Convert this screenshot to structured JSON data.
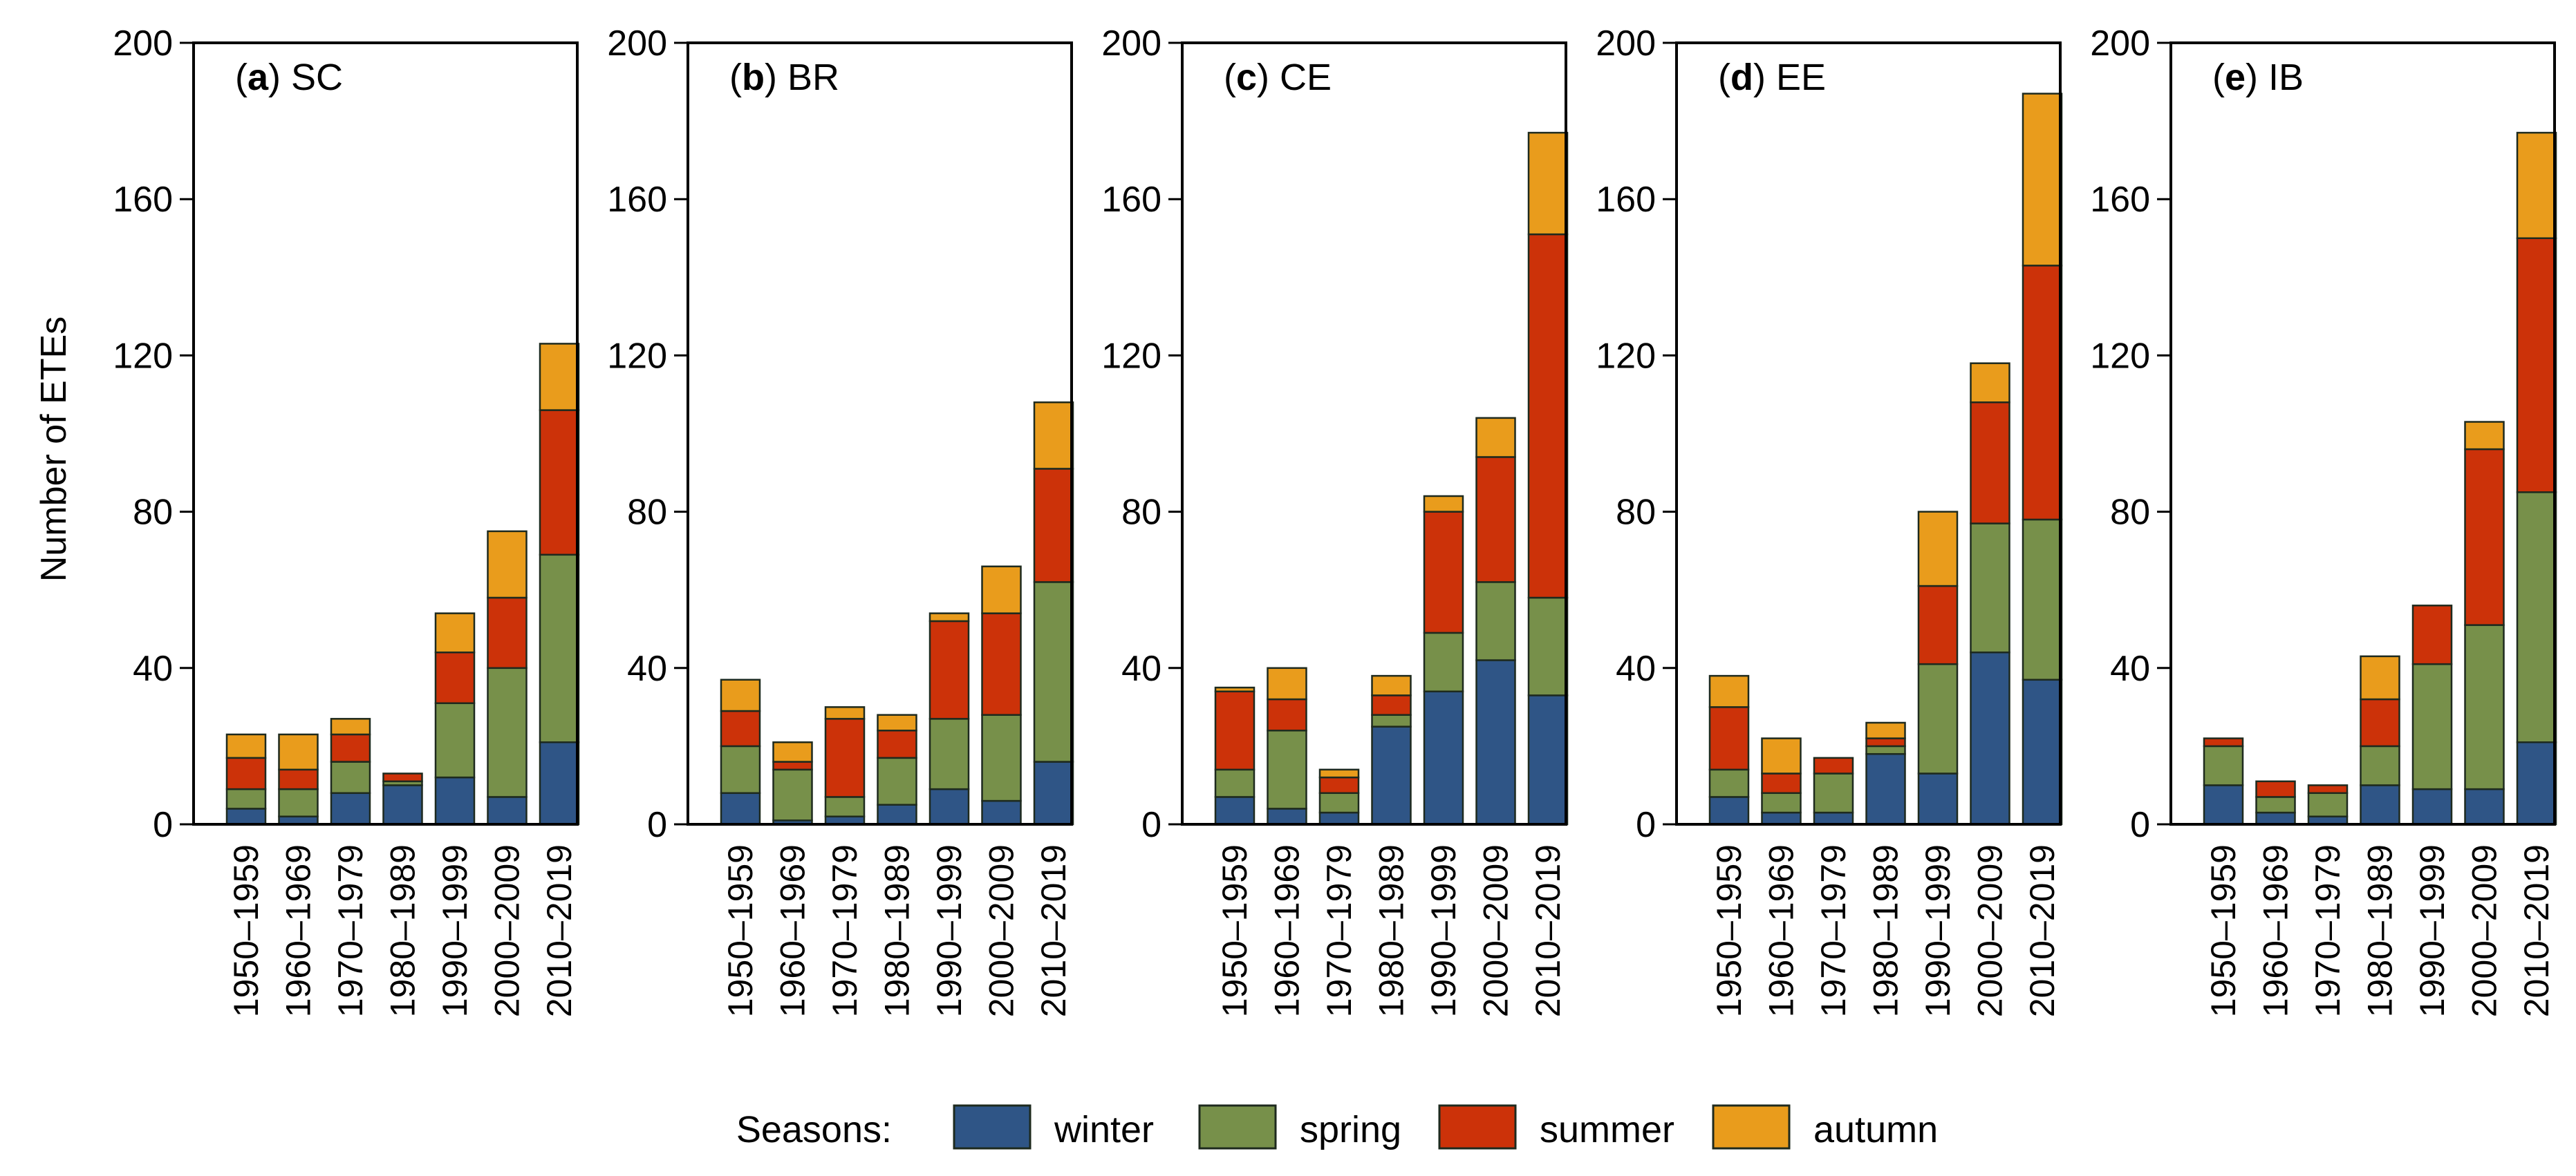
{
  "chart_data": {
    "type": "bar",
    "stacked": true,
    "ylabel": "Number of ETEs",
    "ylim": [
      0,
      200
    ],
    "yticks": [
      0,
      40,
      80,
      120,
      160,
      200
    ],
    "categories": [
      "1950–1959",
      "1960–1969",
      "1970–1979",
      "1980–1989",
      "1990–1999",
      "2000–2009",
      "2010–2019"
    ],
    "series_names": [
      "winter",
      "spring",
      "summer",
      "autumn"
    ],
    "colors": {
      "winter": "#2f5586",
      "spring": "#77904a",
      "summer": "#cc3209",
      "autumn": "#e99c1c"
    },
    "legend": {
      "title": "Seasons:",
      "position": "bottom-center"
    },
    "panels": [
      {
        "letter": "a",
        "region": "SC",
        "series": [
          {
            "name": "winter",
            "values": [
              4,
              2,
              8,
              10,
              12,
              7,
              21
            ]
          },
          {
            "name": "spring",
            "values": [
              5,
              7,
              8,
              1,
              19,
              33,
              48
            ]
          },
          {
            "name": "summer",
            "values": [
              8,
              5,
              7,
              2,
              13,
              18,
              37
            ]
          },
          {
            "name": "autumn",
            "values": [
              6,
              9,
              4,
              0,
              10,
              17,
              17
            ]
          }
        ]
      },
      {
        "letter": "b",
        "region": "BR",
        "series": [
          {
            "name": "winter",
            "values": [
              8,
              1,
              2,
              5,
              9,
              6,
              16
            ]
          },
          {
            "name": "spring",
            "values": [
              12,
              13,
              5,
              12,
              18,
              22,
              46
            ]
          },
          {
            "name": "summer",
            "values": [
              9,
              2,
              20,
              7,
              25,
              26,
              29
            ]
          },
          {
            "name": "autumn",
            "values": [
              8,
              5,
              3,
              4,
              2,
              12,
              17
            ]
          }
        ]
      },
      {
        "letter": "c",
        "region": "CE",
        "series": [
          {
            "name": "winter",
            "values": [
              7,
              4,
              3,
              25,
              34,
              42,
              33
            ]
          },
          {
            "name": "spring",
            "values": [
              7,
              20,
              5,
              3,
              15,
              20,
              25
            ]
          },
          {
            "name": "summer",
            "values": [
              20,
              8,
              4,
              5,
              31,
              32,
              93
            ]
          },
          {
            "name": "autumn",
            "values": [
              1,
              8,
              2,
              5,
              4,
              10,
              26
            ]
          }
        ]
      },
      {
        "letter": "d",
        "region": "EE",
        "series": [
          {
            "name": "winter",
            "values": [
              7,
              3,
              3,
              18,
              13,
              44,
              37
            ]
          },
          {
            "name": "spring",
            "values": [
              7,
              5,
              10,
              2,
              28,
              33,
              41
            ]
          },
          {
            "name": "summer",
            "values": [
              16,
              5,
              4,
              2,
              20,
              31,
              65
            ]
          },
          {
            "name": "autumn",
            "values": [
              8,
              9,
              0,
              4,
              19,
              10,
              44
            ]
          }
        ]
      },
      {
        "letter": "e",
        "region": "IB",
        "series": [
          {
            "name": "winter",
            "values": [
              10,
              3,
              2,
              10,
              9,
              9,
              21
            ]
          },
          {
            "name": "spring",
            "values": [
              10,
              4,
              6,
              10,
              32,
              42,
              64
            ]
          },
          {
            "name": "summer",
            "values": [
              2,
              4,
              2,
              12,
              15,
              45,
              65
            ]
          },
          {
            "name": "autumn",
            "values": [
              0,
              0,
              0,
              11,
              0,
              7,
              27
            ]
          }
        ]
      }
    ]
  }
}
